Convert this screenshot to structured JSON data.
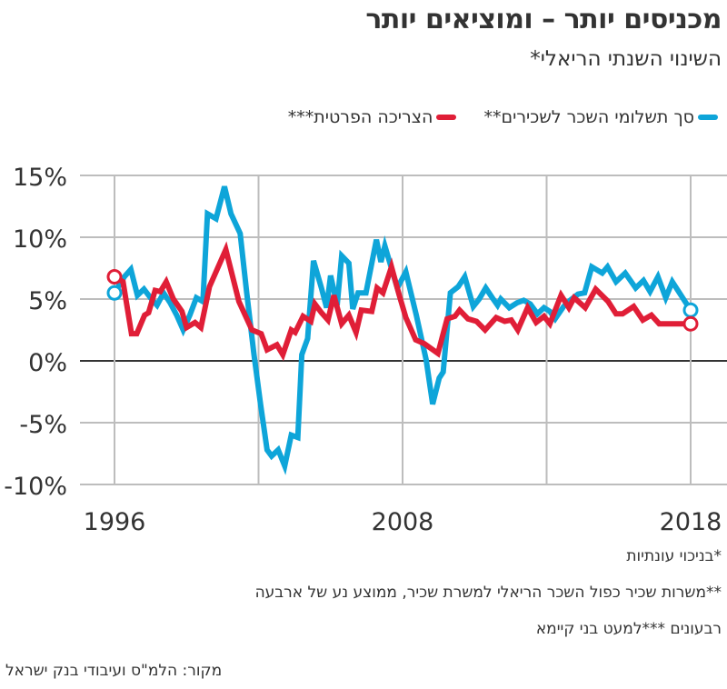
{
  "chart_data": {
    "type": "line",
    "title": "מכניסים יותר – ומוציאים יותר",
    "subtitle": "השינוי השנתי הריאלי*",
    "xlabel": "",
    "ylabel": "",
    "x_unit": "quarter index (0 = 1996, 88 = 2018)",
    "x_ticks": [
      {
        "at": 0,
        "label": "1996"
      },
      {
        "at": 44,
        "label": "2008"
      },
      {
        "at": 88,
        "label": "2018"
      }
    ],
    "x_gridlines": [
      0,
      22,
      44,
      66,
      88
    ],
    "xlim": [
      0,
      88
    ],
    "ylim": [
      -10,
      15
    ],
    "y_ticks": [
      15,
      10,
      5,
      0,
      -5,
      -10
    ],
    "y_tick_labels": [
      "15%",
      "10%",
      "5%",
      "0%",
      "-5%",
      "-10%"
    ],
    "grid": true,
    "legend_position": "top",
    "series": [
      {
        "name": "סך תשלומי השכר לשכירים**",
        "color": "#0ea5d9",
        "points": [
          [
            0,
            5.5
          ],
          [
            1.5,
            6.8
          ],
          [
            2.5,
            7.4
          ],
          [
            3.5,
            5.3
          ],
          [
            4.5,
            5.8
          ],
          [
            5.5,
            5.1
          ],
          [
            6.5,
            4.5
          ],
          [
            7.5,
            5.5
          ],
          [
            8.5,
            4.7
          ],
          [
            9.5,
            3.7
          ],
          [
            10.5,
            2.5
          ],
          [
            11.5,
            3.7
          ],
          [
            12.5,
            5.1
          ],
          [
            13.5,
            4.8
          ],
          [
            14.2,
            11.9
          ],
          [
            15.5,
            11.5
          ],
          [
            16.8,
            14.1
          ],
          [
            17.8,
            11.9
          ],
          [
            19.2,
            10.3
          ],
          [
            20.2,
            5.5
          ],
          [
            21.3,
            0.5
          ],
          [
            22.3,
            -3.5
          ],
          [
            23.3,
            -7.2
          ],
          [
            24,
            -7.7
          ],
          [
            25,
            -7.2
          ],
          [
            26,
            -8.5
          ],
          [
            27,
            -6.0
          ],
          [
            28,
            -6.2
          ],
          [
            28.6,
            0.5
          ],
          [
            29.5,
            1.8
          ],
          [
            30.4,
            8.1
          ],
          [
            31.6,
            5.9
          ],
          [
            32.4,
            4.3
          ],
          [
            33,
            6.9
          ],
          [
            34,
            4.5
          ],
          [
            34.7,
            8.5
          ],
          [
            35.8,
            7.9
          ],
          [
            36.4,
            4.2
          ],
          [
            37.2,
            5.5
          ],
          [
            38.4,
            5.5
          ],
          [
            40,
            9.8
          ],
          [
            40.7,
            8.0
          ],
          [
            41.3,
            9.3
          ],
          [
            43.2,
            5.9
          ],
          [
            44.5,
            7.2
          ],
          [
            46.1,
            3.7
          ],
          [
            47.6,
            0.1
          ],
          [
            48.6,
            -3.5
          ],
          [
            49.6,
            -1.4
          ],
          [
            50.2,
            -0.9
          ],
          [
            51.3,
            5.5
          ],
          [
            52.5,
            6.0
          ],
          [
            53.5,
            6.8
          ],
          [
            54.8,
            4.4
          ],
          [
            55.7,
            5.0
          ],
          [
            56.7,
            5.9
          ],
          [
            57.7,
            5.1
          ],
          [
            58.5,
            4.5
          ],
          [
            59,
            5.0
          ],
          [
            60.3,
            4.3
          ],
          [
            61.5,
            4.7
          ],
          [
            62.5,
            4.9
          ],
          [
            63.5,
            4.6
          ],
          [
            64.6,
            3.8
          ],
          [
            65.6,
            4.3
          ],
          [
            66.5,
            4.0
          ],
          [
            67.3,
            3.4
          ],
          [
            68.6,
            4.4
          ],
          [
            69.6,
            4.9
          ],
          [
            70.8,
            5.4
          ],
          [
            71.8,
            5.5
          ],
          [
            72.9,
            7.6
          ],
          [
            74.5,
            7.1
          ],
          [
            75.3,
            7.6
          ],
          [
            76.6,
            6.4
          ],
          [
            78,
            7.1
          ],
          [
            79.6,
            5.9
          ],
          [
            80.8,
            6.5
          ],
          [
            81.8,
            5.6
          ],
          [
            83,
            6.8
          ],
          [
            84.2,
            5.1
          ],
          [
            85.2,
            6.4
          ],
          [
            88,
            4.1
          ]
        ]
      },
      {
        "name": "הצריכה הפרטית***",
        "color": "#e01e37",
        "points": [
          [
            0,
            6.8
          ],
          [
            1.3,
            6.4
          ],
          [
            2.6,
            2.2
          ],
          [
            3.4,
            2.2
          ],
          [
            4.6,
            3.7
          ],
          [
            5.2,
            3.9
          ],
          [
            6.2,
            5.7
          ],
          [
            7,
            5.6
          ],
          [
            7.9,
            6.4
          ],
          [
            9,
            5.0
          ],
          [
            10.3,
            4.0
          ],
          [
            11,
            2.7
          ],
          [
            12.3,
            3.1
          ],
          [
            13.2,
            2.7
          ],
          [
            14.5,
            6.0
          ],
          [
            17,
            9.0
          ],
          [
            19,
            4.8
          ],
          [
            21,
            2.5
          ],
          [
            22.4,
            2.2
          ],
          [
            23.3,
            0.9
          ],
          [
            24.8,
            1.3
          ],
          [
            25.7,
            0.5
          ],
          [
            27,
            2.5
          ],
          [
            27.6,
            2.3
          ],
          [
            28.8,
            3.6
          ],
          [
            30,
            3.2
          ],
          [
            30.6,
            4.6
          ],
          [
            31.6,
            3.9
          ],
          [
            32.6,
            3.3
          ],
          [
            33.5,
            5.3
          ],
          [
            34.7,
            3.0
          ],
          [
            35.8,
            3.7
          ],
          [
            36.9,
            2.3
          ],
          [
            37.7,
            4.1
          ],
          [
            39.3,
            4.0
          ],
          [
            40.1,
            5.9
          ],
          [
            41,
            5.5
          ],
          [
            42.3,
            7.6
          ],
          [
            43.5,
            5.3
          ],
          [
            44.5,
            3.5
          ],
          [
            46,
            1.7
          ],
          [
            47.3,
            1.4
          ],
          [
            49.4,
            0.6
          ],
          [
            50.8,
            3.4
          ],
          [
            52,
            3.6
          ],
          [
            52.7,
            4.1
          ],
          [
            54,
            3.4
          ],
          [
            55.3,
            3.2
          ],
          [
            56.6,
            2.5
          ],
          [
            58.3,
            3.5
          ],
          [
            59.6,
            3.2
          ],
          [
            60.6,
            3.3
          ],
          [
            61.6,
            2.5
          ],
          [
            63.1,
            4.3
          ],
          [
            64.4,
            3.1
          ],
          [
            65.6,
            3.6
          ],
          [
            66.5,
            3.0
          ],
          [
            68.2,
            5.3
          ],
          [
            69.4,
            4.3
          ],
          [
            70.2,
            5.1
          ],
          [
            71.9,
            4.3
          ],
          [
            73.5,
            5.8
          ],
          [
            75.4,
            4.8
          ],
          [
            76.6,
            3.8
          ],
          [
            77.6,
            3.8
          ],
          [
            79.3,
            4.4
          ],
          [
            80.7,
            3.3
          ],
          [
            82,
            3.7
          ],
          [
            83.2,
            3.0
          ],
          [
            88,
            3.0
          ]
        ]
      }
    ]
  },
  "legend": [
    {
      "label": "סך תשלומי השכר לשכירים**",
      "color": "#0ea5d9"
    },
    {
      "label": "הצריכה הפרטית***",
      "color": "#e01e37"
    }
  ],
  "notes": [
    "*בניכוי עונתיות",
    "**משרות שכיר כפול השכר הריאלי למשרת שכיר, ממוצע נע של ארבעה",
    "רבעונים ***למעט בני קיימא"
  ],
  "source": "מקור: הלמ\"ס ועיבודי בנק ישראל"
}
